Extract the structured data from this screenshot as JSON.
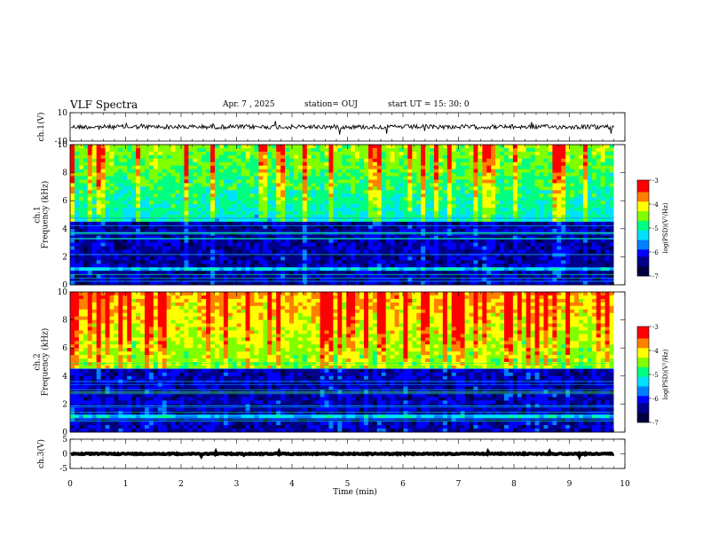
{
  "header": {
    "title": "VLF Spectra",
    "date": "Apr. 7  , 2025",
    "station": "station= OUJ",
    "start": "start  UT =   15: 30: 0"
  },
  "chart_data": [
    {
      "type": "line",
      "panel": "waveform-ch1",
      "ylabel": "ch.1(V)",
      "yticks": [
        "10",
        "-10"
      ],
      "ylim": [
        -10,
        10
      ],
      "baseline": 0,
      "color": "#000000"
    },
    {
      "type": "heatmap",
      "panel": "spectrogram-ch1",
      "ylabel": "ch.1\nFrequency  (kHz)",
      "ylim": [
        0,
        10
      ],
      "yticks": [
        "0",
        "2",
        "4",
        "6",
        "8",
        "10"
      ],
      "colorbar": {
        "ticks": [
          "-3",
          "-4",
          "-5",
          "-6",
          "-7"
        ],
        "label": "log(PSD)(V²/Hz)",
        "range": [
          -7,
          -3
        ]
      }
    },
    {
      "type": "heatmap",
      "panel": "spectrogram-ch2",
      "ylabel": "ch.2\nFrequency  (kHz)",
      "ylim": [
        0,
        10
      ],
      "yticks": [
        "0",
        "2",
        "4",
        "6",
        "8",
        "10"
      ],
      "colorbar": {
        "ticks": [
          "-3",
          "-4",
          "-5",
          "-6",
          "-7"
        ],
        "label": "log(PSD)(V²/Hz)",
        "range": [
          -7,
          -3
        ]
      }
    },
    {
      "type": "line",
      "panel": "waveform-ch3",
      "ylabel": "ch.3(V)",
      "yticks": [
        "5",
        "0",
        "-5"
      ],
      "ylim": [
        -5,
        5
      ],
      "baseline": 0,
      "color": "#000000"
    }
  ],
  "xaxis": {
    "label": "Time  (min)",
    "xlim": [
      0,
      10
    ],
    "ticks": [
      "0",
      "1",
      "2",
      "3",
      "4",
      "5",
      "6",
      "7",
      "8",
      "9",
      "10"
    ],
    "data_end": 9.8
  },
  "colormap": [
    "#000040",
    "#00008b",
    "#0000ff",
    "#0080ff",
    "#00e0ff",
    "#00ff80",
    "#80ff00",
    "#ffff00",
    "#ff8000",
    "#ff0000",
    "#ffffff"
  ]
}
